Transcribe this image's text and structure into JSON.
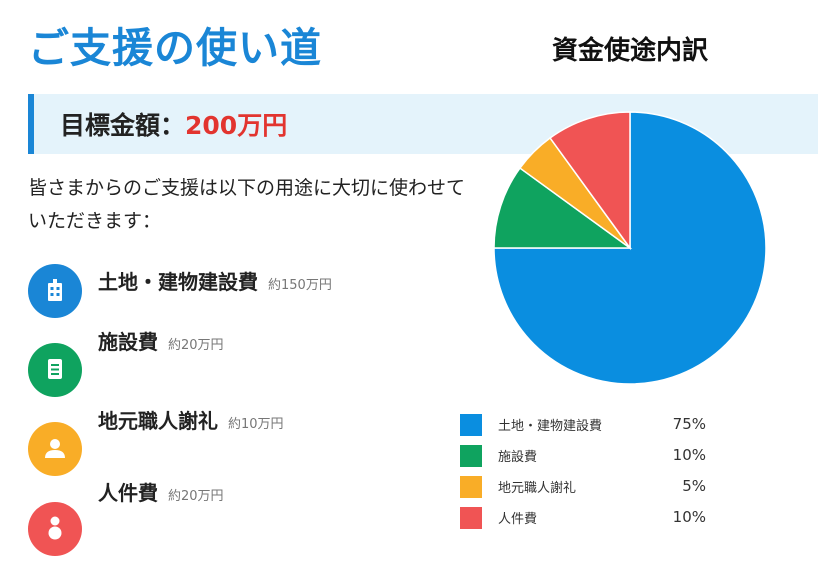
{
  "header": {
    "title": "ご支援の使い道"
  },
  "goal": {
    "label": "目標金額：",
    "amount": "200万円"
  },
  "intro_text": "皆さまからのご支援は以下の用途に大切に使わせていただきます：",
  "items": [
    {
      "name": "土地・建物建設費",
      "amount": "約150万円",
      "icon": "building-icon",
      "color": "#1a86d6"
    },
    {
      "name": "施設費",
      "amount": "約20万円",
      "icon": "document-icon",
      "color": "#0fa35f"
    },
    {
      "name": "地元職人謝礼",
      "amount": "約10万円",
      "icon": "person-icon",
      "color": "#f9ad27"
    },
    {
      "name": "人件費",
      "amount": "約20万円",
      "icon": "people-icon",
      "color": "#f05454"
    }
  ],
  "chart_data": {
    "type": "pie",
    "title": "資金使途内訳",
    "categories": [
      "土地・建物建設費",
      "施設費",
      "地元職人謝礼",
      "人件費"
    ],
    "values": [
      75,
      10,
      5,
      10
    ],
    "value_labels": [
      "75%",
      "10%",
      "5%",
      "10%"
    ],
    "colors": [
      "#0a8ee0",
      "#0fa35f",
      "#f9ad27",
      "#f05454"
    ],
    "legend_position": "bottom",
    "unit": "%"
  }
}
